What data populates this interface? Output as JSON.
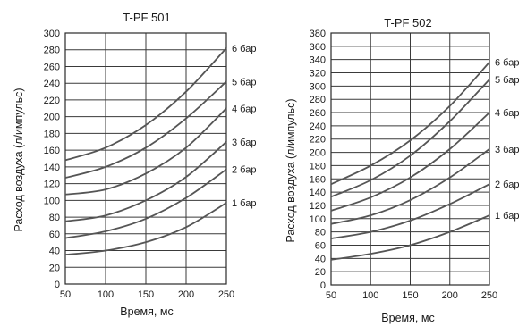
{
  "chart_data": [
    {
      "type": "line",
      "title": "T-PF 501",
      "xlabel": "Время, мс",
      "ylabel": "Расход воздуха (л/импульс)",
      "xlim": [
        50,
        250
      ],
      "ylim": [
        0,
        300
      ],
      "x_ticks": [
        "50",
        "100",
        "150",
        "200",
        "250"
      ],
      "y_ticks": [
        "0",
        "20",
        "40",
        "60",
        "80",
        "100",
        "120",
        "140",
        "160",
        "180",
        "200",
        "220",
        "240",
        "260",
        "280",
        "300"
      ],
      "grid": true,
      "x": [
        50,
        100,
        150,
        200,
        250
      ],
      "series": [
        {
          "name": "6 бар",
          "values": [
            148,
            163,
            190,
            230,
            282
          ]
        },
        {
          "name": "5 бар",
          "values": [
            127,
            140,
            163,
            198,
            242
          ]
        },
        {
          "name": "4 бар",
          "values": [
            107,
            113,
            132,
            163,
            210
          ]
        },
        {
          "name": "3 бар",
          "values": [
            75,
            82,
            100,
            128,
            170
          ]
        },
        {
          "name": "2 бар",
          "values": [
            55,
            63,
            78,
            103,
            137
          ]
        },
        {
          "name": "1 бар",
          "values": [
            35,
            40,
            50,
            68,
            97
          ]
        }
      ]
    },
    {
      "type": "line",
      "title": "T-PF 502",
      "xlabel": "Время, мс",
      "ylabel": "Расход воздуха (л/импульс)",
      "xlim": [
        50,
        250
      ],
      "ylim": [
        0,
        380
      ],
      "x_ticks": [
        "50",
        "100",
        "150",
        "200",
        "250"
      ],
      "y_ticks": [
        "0",
        "20",
        "40",
        "60",
        "80",
        "100",
        "120",
        "140",
        "160",
        "180",
        "200",
        "220",
        "240",
        "260",
        "280",
        "300",
        "320",
        "340",
        "360",
        "380"
      ],
      "grid": true,
      "x": [
        50,
        100,
        150,
        200,
        250
      ],
      "series": [
        {
          "name": "6 бар",
          "values": [
            152,
            180,
            218,
            270,
            336
          ]
        },
        {
          "name": "5 бар",
          "values": [
            133,
            158,
            195,
            247,
            310
          ]
        },
        {
          "name": "4 бар",
          "values": [
            112,
            132,
            162,
            205,
            260
          ]
        },
        {
          "name": "3 бар",
          "values": [
            92,
            105,
            128,
            162,
            205
          ]
        },
        {
          "name": "2 бар",
          "values": [
            70,
            80,
            97,
            122,
            152
          ]
        },
        {
          "name": "1 бар",
          "values": [
            38,
            47,
            60,
            80,
            105
          ]
        }
      ]
    }
  ],
  "colors": {
    "curve": "#555555",
    "grid": "#3a3a3a",
    "frame": "#2a2a2a",
    "text": "#1a1a1a"
  }
}
